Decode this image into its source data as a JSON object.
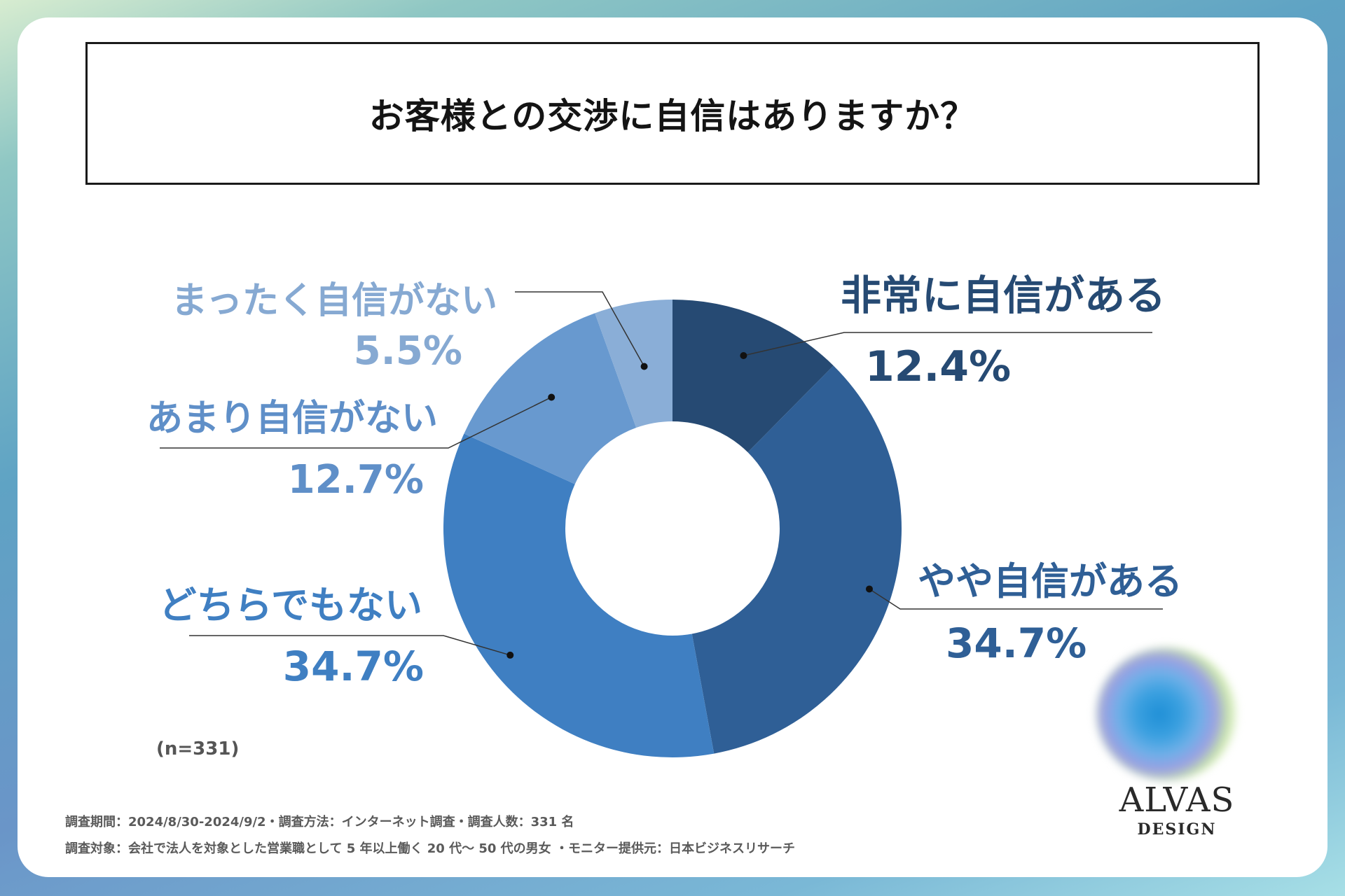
{
  "title": "お客様との交渉に自信はありますか？",
  "sample_size": "(n=331)",
  "footnotes": [
    "調査期間：2024/8/30-2024/9/2・調査方法：インターネット調査・調査人数：331 名",
    "調査対象：会社で法人を対象とした営業職として 5 年以上働く 20 代～ 50 代の男女 ・モニター提供元：日本ビジネスリサーチ"
  ],
  "logo": {
    "main": "ALVAS",
    "sub": "DESIGN"
  },
  "chart_data": {
    "type": "pie",
    "donut": true,
    "categories": [
      "非常に自信がある",
      "やや自信がある",
      "どちらでもない",
      "あまり自信がない",
      "まったく自信がない"
    ],
    "values": [
      12.4,
      34.7,
      34.7,
      12.7,
      5.5
    ],
    "value_labels": [
      "12.4%",
      "34.7%",
      "34.7%",
      "12.7%",
      "5.5%"
    ],
    "colors": [
      "#264a73",
      "#2f5f96",
      "#3f7fc2",
      "#6899cf",
      "#8aaed7"
    ],
    "unit": "%",
    "legend": "none"
  }
}
